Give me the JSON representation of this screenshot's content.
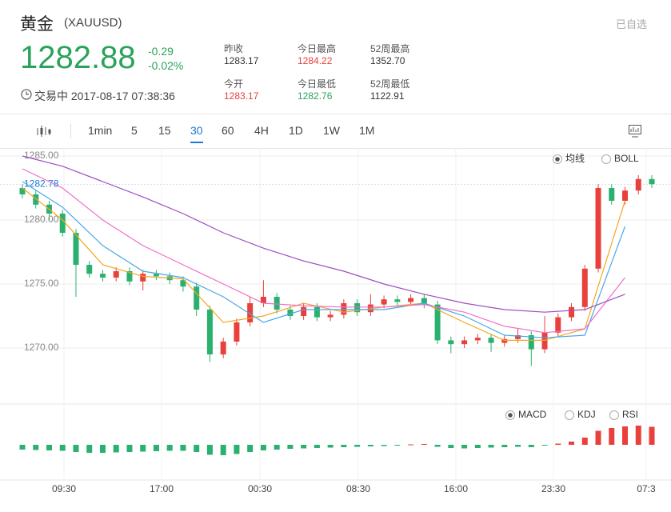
{
  "header": {
    "title": "黄金",
    "symbol": "(XAUUSD)",
    "watch": "已自选",
    "price": "1282.88",
    "change": "-0.29",
    "change_pct": "-0.02%",
    "status": "交易中",
    "datetime": "2017-08-17 07:38:36"
  },
  "stats": [
    {
      "label": "昨收",
      "value": "1283.17"
    },
    {
      "label": "今日最高",
      "value": "1284.22"
    },
    {
      "label": "52周最高",
      "value": "1352.70"
    },
    {
      "label": "今开",
      "value": "1283.17"
    },
    {
      "label": "今日最低",
      "value": "1282.76"
    },
    {
      "label": "52周最低",
      "value": "1122.91"
    }
  ],
  "toolbar": [
    "1min",
    "5",
    "15",
    "30",
    "60",
    "4H",
    "1D",
    "1W",
    "1M"
  ],
  "indicators_main": [
    "均线",
    "BOLL"
  ],
  "indicators_sub": [
    "MACD",
    "KDJ",
    "RSI"
  ],
  "chart_data": {
    "type": "candlestick",
    "open": [
      1282.5,
      1282.0,
      1281.2,
      1280.5,
      1279.0,
      1276.5,
      1275.8,
      1275.5,
      1276.0,
      1275.2,
      1275.8,
      1275.6,
      1275.3,
      1274.8,
      1273.0,
      1269.5,
      1270.5,
      1272.0,
      1273.5,
      1274.0,
      1273.0,
      1272.5,
      1273.2,
      1272.4,
      1272.6,
      1273.5,
      1272.8,
      1273.4,
      1273.8,
      1273.6,
      1273.9,
      1273.4,
      1270.6,
      1270.3,
      1270.6,
      1270.8,
      1270.4,
      1270.7,
      1271.0,
      1269.9,
      1271.2,
      1272.4,
      1273.2,
      1276.2,
      1282.5,
      1281.5,
      1282.3,
      1283.2
    ],
    "high": [
      1282.8,
      1282.3,
      1281.5,
      1280.8,
      1279.3,
      1276.8,
      1276.1,
      1276.3,
      1276.3,
      1276.1,
      1276.1,
      1275.9,
      1275.6,
      1275.1,
      1273.3,
      1270.8,
      1272.3,
      1274.0,
      1275.3,
      1274.3,
      1273.3,
      1273.5,
      1273.5,
      1272.9,
      1273.8,
      1273.8,
      1274.2,
      1274.1,
      1274.1,
      1274.2,
      1274.2,
      1273.7,
      1270.9,
      1270.9,
      1271.1,
      1271.1,
      1271.0,
      1271.5,
      1271.3,
      1272.5,
      1272.7,
      1273.5,
      1276.5,
      1282.8,
      1282.8,
      1282.6,
      1283.5,
      1283.5
    ],
    "low": [
      1281.7,
      1280.9,
      1280.0,
      1278.7,
      1274.0,
      1275.5,
      1275.2,
      1275.2,
      1274.9,
      1274.5,
      1275.3,
      1275.0,
      1274.4,
      1272.5,
      1268.9,
      1269.2,
      1270.2,
      1271.7,
      1273.2,
      1272.7,
      1272.2,
      1272.2,
      1272.1,
      1272.1,
      1272.3,
      1272.5,
      1272.5,
      1273.1,
      1273.3,
      1273.3,
      1273.1,
      1270.3,
      1269.6,
      1270.0,
      1270.3,
      1269.7,
      1270.1,
      1270.4,
      1268.6,
      1269.6,
      1270.9,
      1272.1,
      1272.9,
      1275.9,
      1281.2,
      1281.2,
      1282.0,
      1282.5
    ],
    "close": [
      1282.0,
      1281.2,
      1280.5,
      1279.0,
      1276.5,
      1275.8,
      1275.5,
      1276.0,
      1275.2,
      1275.8,
      1275.6,
      1275.3,
      1274.8,
      1273.0,
      1269.5,
      1270.5,
      1272.0,
      1273.5,
      1274.0,
      1273.0,
      1272.5,
      1273.2,
      1272.4,
      1272.6,
      1273.5,
      1272.8,
      1273.4,
      1273.8,
      1273.6,
      1273.9,
      1273.4,
      1270.6,
      1270.3,
      1270.6,
      1270.8,
      1270.4,
      1270.7,
      1271.0,
      1269.9,
      1271.2,
      1272.4,
      1273.2,
      1276.2,
      1282.5,
      1281.5,
      1282.3,
      1283.2,
      1282.8
    ],
    "ylim": [
      1265.625,
      1285.625
    ],
    "yticks": [
      {
        "value": 1285,
        "label": "1285.00"
      },
      {
        "value": 1280,
        "label": "1280.00"
      },
      {
        "value": 1275,
        "label": "1275.00"
      },
      {
        "value": 1270,
        "label": "1270.00"
      }
    ],
    "last_price": {
      "value": 1282.78,
      "label": "1282.78"
    },
    "x_labels": [
      "09:30",
      "17:00",
      "00:30",
      "08:30",
      "16:00",
      "23:30",
      "07:3"
    ],
    "up_color": "#e8413c",
    "down_color": "#2ab06f",
    "ma": [
      {
        "color": "#f5a623",
        "values": [
          1282.5,
          1280,
          1276.5,
          1275.6,
          1275.4,
          1272,
          1272.5,
          1273.5,
          1272.8,
          1273.2,
          1273.5,
          1272,
          1270.6,
          1270.6,
          1271.5,
          1281.5
        ]
      },
      {
        "color": "#4aa8e8",
        "values": [
          1283,
          1281,
          1278,
          1276,
          1275.5,
          1274,
          1272,
          1273,
          1273,
          1273,
          1273.5,
          1272.5,
          1271,
          1270.8,
          1271,
          1279.5
        ]
      },
      {
        "color": "#f06ec8",
        "values": [
          1284,
          1282.5,
          1280,
          1278,
          1276.5,
          1275,
          1273.5,
          1273.3,
          1273.2,
          1273.2,
          1273.4,
          1272.8,
          1271.7,
          1271.2,
          1271.5,
          1275.5
        ]
      },
      {
        "color": "#9b4fc2",
        "values": [
          1285,
          1284.2,
          1283,
          1281.8,
          1280.5,
          1279,
          1277.8,
          1276.8,
          1276,
          1275,
          1274.2,
          1273.5,
          1273,
          1272.8,
          1273,
          1274.2
        ]
      }
    ],
    "macd": [
      -1.2,
      -1.3,
      -1.4,
      -1.5,
      -1.8,
      -2,
      -2,
      -1.9,
      -1.8,
      -1.7,
      -1.6,
      -1.5,
      -1.5,
      -1.8,
      -2.5,
      -2.6,
      -2.3,
      -1.8,
      -1.4,
      -1.2,
      -1,
      -0.9,
      -0.8,
      -0.7,
      -0.6,
      -0.5,
      -0.4,
      -0.3,
      -0.2,
      0.1,
      0.2,
      -0.5,
      -0.8,
      -0.9,
      -0.8,
      -0.7,
      -0.6,
      -0.5,
      -0.6,
      -0.2,
      0.3,
      0.8,
      1.8,
      3.5,
      4.2,
      4.6,
      4.8,
      4.5
    ]
  }
}
